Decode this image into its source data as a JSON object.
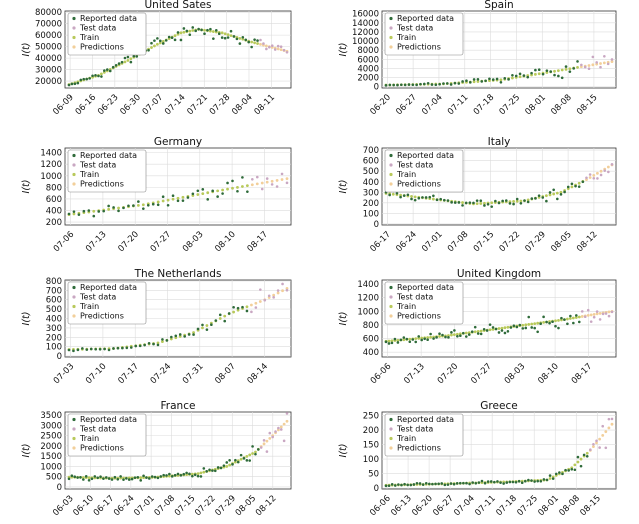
{
  "figure": {
    "legend_labels": [
      "Reported data",
      "Test data",
      "Train",
      "Predictions"
    ],
    "colors": {
      "reported": "#2f6b3a",
      "test": "#c9a7c2",
      "train": "#b8c95a",
      "predictions": "#f2cf9a"
    }
  },
  "chart_data": [
    {
      "type": "scatter",
      "title": "United Sates",
      "ylabel": "I(t)",
      "yticks": [
        20000,
        30000,
        40000,
        50000,
        60000,
        70000,
        80000
      ],
      "ylim": [
        14000,
        81000
      ],
      "xticks": [
        "06-09",
        "06-16",
        "06-23",
        "06-30",
        "07-07",
        "07-14",
        "07-21",
        "07-28",
        "08-04",
        "08-11"
      ],
      "n_days": 75,
      "n_train": 65,
      "trend": [
        [
          0,
          17000
        ],
        [
          10,
          25000
        ],
        [
          20,
          38000
        ],
        [
          30,
          52000
        ],
        [
          38,
          62000
        ],
        [
          44,
          65000
        ],
        [
          52,
          62000
        ],
        [
          62,
          54000
        ],
        [
          74,
          46000
        ]
      ],
      "noise": 0.1,
      "seed": 3
    },
    {
      "type": "scatter",
      "title": "Spain",
      "ylabel": "I(t)",
      "yticks": [
        0,
        2000,
        4000,
        6000,
        8000,
        10000,
        12000,
        14000,
        16000
      ],
      "ylim": [
        -300,
        16600
      ],
      "xticks": [
        "06-20",
        "06-27",
        "07-04",
        "07-11",
        "07-18",
        "07-25",
        "08-01",
        "08-08",
        "08-15"
      ],
      "n_days": 60,
      "n_train": 51,
      "trend": [
        [
          0,
          350
        ],
        [
          15,
          600
        ],
        [
          30,
          1500
        ],
        [
          45,
          3500
        ],
        [
          59,
          5500
        ]
      ],
      "noise": 0.45,
      "seed": 7
    },
    {
      "type": "scatter",
      "title": "Germany",
      "ylabel": "I(t)",
      "yticks": [
        200,
        400,
        600,
        800,
        1000,
        1200,
        1400
      ],
      "ylim": [
        150,
        1480
      ],
      "xticks": [
        "07-06",
        "07-13",
        "07-20",
        "07-27",
        "08-03",
        "08-10",
        "08-17"
      ],
      "n_days": 45,
      "n_train": 37,
      "trend": [
        [
          0,
          330
        ],
        [
          15,
          500
        ],
        [
          30,
          740
        ],
        [
          44,
          950
        ]
      ],
      "noise": 0.28,
      "seed": 11
    },
    {
      "type": "scatter",
      "title": "Italy",
      "ylabel": "I(t)",
      "yticks": [
        0,
        100,
        200,
        300,
        400,
        500,
        600,
        700
      ],
      "ylim": [
        -10,
        720
      ],
      "xticks": [
        "06-17",
        "06-24",
        "07-01",
        "07-08",
        "07-15",
        "07-22",
        "07-29",
        "08-05",
        "08-12"
      ],
      "n_days": 63,
      "n_train": 55,
      "trend": [
        [
          0,
          290
        ],
        [
          12,
          240
        ],
        [
          24,
          190
        ],
        [
          38,
          220
        ],
        [
          48,
          300
        ],
        [
          55,
          420
        ],
        [
          62,
          560
        ]
      ],
      "noise": 0.22,
      "seed": 5
    },
    {
      "type": "scatter",
      "title": "The Netherlands",
      "ylabel": "I(t)",
      "yticks": [
        0,
        100,
        200,
        300,
        400,
        500,
        600,
        700,
        800
      ],
      "ylim": [
        -10,
        810
      ],
      "xticks": [
        "07-03",
        "07-10",
        "07-17",
        "07-24",
        "07-31",
        "08-07",
        "08-14"
      ],
      "n_days": 50,
      "n_train": 41,
      "trend": [
        [
          0,
          70
        ],
        [
          10,
          80
        ],
        [
          20,
          140
        ],
        [
          28,
          250
        ],
        [
          36,
          450
        ],
        [
          44,
          600
        ],
        [
          49,
          720
        ]
      ],
      "noise": 0.18,
      "seed": 13
    },
    {
      "type": "scatter",
      "title": "United Kingdom",
      "ylabel": "I(t)",
      "yticks": [
        400,
        600,
        800,
        1000,
        1200,
        1400
      ],
      "ylim": [
        330,
        1460
      ],
      "xticks": [
        "06-06",
        "07-13",
        "07-20",
        "07-27",
        "08-03",
        "08-10",
        "08-17"
      ],
      "n_days": 77,
      "n_train": 66,
      "trend": [
        [
          0,
          560
        ],
        [
          20,
          640
        ],
        [
          40,
          760
        ],
        [
          60,
          880
        ],
        [
          76,
          1000
        ]
      ],
      "noise": 0.15,
      "seed": 17
    },
    {
      "type": "scatter",
      "title": "France",
      "ylabel": "I(t)",
      "yticks": [
        0,
        500,
        1000,
        1500,
        2000,
        2500,
        3000,
        3500
      ],
      "ylim": [
        -100,
        3650
      ],
      "xticks": [
        "06-03",
        "06-10",
        "06-17",
        "06-24",
        "07-01",
        "07-08",
        "07-15",
        "07-22",
        "07-29",
        "08-05",
        "08-12"
      ],
      "n_days": 77,
      "n_train": 67,
      "trend": [
        [
          0,
          480
        ],
        [
          15,
          420
        ],
        [
          30,
          470
        ],
        [
          45,
          650
        ],
        [
          55,
          1000
        ],
        [
          65,
          1700
        ],
        [
          71,
          2500
        ],
        [
          76,
          3200
        ]
      ],
      "noise": 0.3,
      "seed": 19
    },
    {
      "type": "scatter",
      "title": "Greece",
      "ylabel": "I(t)",
      "yticks": [
        0,
        50,
        100,
        150,
        200,
        250
      ],
      "ylim": [
        -3,
        262
      ],
      "xticks": [
        "06-06",
        "06-13",
        "06-20",
        "06-27",
        "07-04",
        "07-11",
        "07-18",
        "07-25",
        "08-01",
        "08-08",
        "08-15"
      ],
      "n_days": 74,
      "n_train": 66,
      "trend": [
        [
          0,
          10
        ],
        [
          20,
          15
        ],
        [
          40,
          22
        ],
        [
          52,
          28
        ],
        [
          60,
          70
        ],
        [
          66,
          130
        ],
        [
          73,
          220
        ]
      ],
      "noise": 0.35,
      "seed": 23
    }
  ]
}
